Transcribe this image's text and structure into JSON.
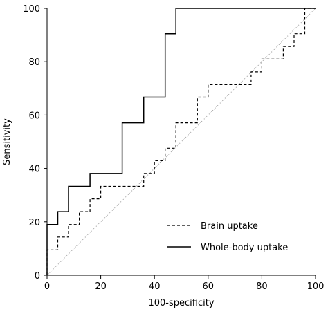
{
  "chart_data": {
    "type": "line",
    "title": "",
    "xlabel": "100-specificity",
    "ylabel": "Sensitivity",
    "xlim": [
      0,
      100
    ],
    "ylim": [
      0,
      100
    ],
    "xticks": [
      "0",
      "20",
      "40",
      "60",
      "80",
      "100"
    ],
    "yticks": [
      "0",
      "20",
      "40",
      "60",
      "80",
      "100"
    ],
    "grid": false,
    "legend_position": "bottom-right",
    "reference_line": {
      "style": "dotted",
      "color": "#9a9a9a",
      "points": [
        [
          0,
          0
        ],
        [
          100,
          100
        ]
      ]
    },
    "series": [
      {
        "name": "Brain uptake",
        "style": "dashed",
        "color": "#000000",
        "points": [
          [
            0,
            0
          ],
          [
            0,
            9.5
          ],
          [
            4,
            9.5
          ],
          [
            4,
            14.3
          ],
          [
            8,
            14.3
          ],
          [
            8,
            19
          ],
          [
            12,
            19
          ],
          [
            12,
            23.8
          ],
          [
            16,
            23.8
          ],
          [
            16,
            28.6
          ],
          [
            20,
            28.6
          ],
          [
            20,
            33.3
          ],
          [
            36,
            33.3
          ],
          [
            36,
            38.1
          ],
          [
            40,
            38.1
          ],
          [
            40,
            42.9
          ],
          [
            44,
            42.9
          ],
          [
            44,
            47.6
          ],
          [
            48,
            47.6
          ],
          [
            48,
            57.1
          ],
          [
            56,
            57.1
          ],
          [
            56,
            66.7
          ],
          [
            60,
            66.7
          ],
          [
            60,
            71.4
          ],
          [
            76,
            71.4
          ],
          [
            76,
            76.2
          ],
          [
            80,
            76.2
          ],
          [
            80,
            81
          ],
          [
            88,
            81
          ],
          [
            88,
            85.7
          ],
          [
            92,
            85.7
          ],
          [
            92,
            90.5
          ],
          [
            96,
            90.5
          ],
          [
            96,
            100
          ],
          [
            100,
            100
          ]
        ]
      },
      {
        "name": "Whole-body uptake",
        "style": "solid",
        "color": "#000000",
        "points": [
          [
            0,
            0
          ],
          [
            0,
            19
          ],
          [
            4,
            19
          ],
          [
            4,
            23.8
          ],
          [
            8,
            23.8
          ],
          [
            8,
            33.3
          ],
          [
            16,
            33.3
          ],
          [
            16,
            38.1
          ],
          [
            28,
            38.1
          ],
          [
            28,
            57.1
          ],
          [
            36,
            57.1
          ],
          [
            36,
            66.7
          ],
          [
            44,
            66.7
          ],
          [
            44,
            90.5
          ],
          [
            48,
            90.5
          ],
          [
            48,
            100
          ],
          [
            100,
            100
          ]
        ]
      }
    ]
  }
}
